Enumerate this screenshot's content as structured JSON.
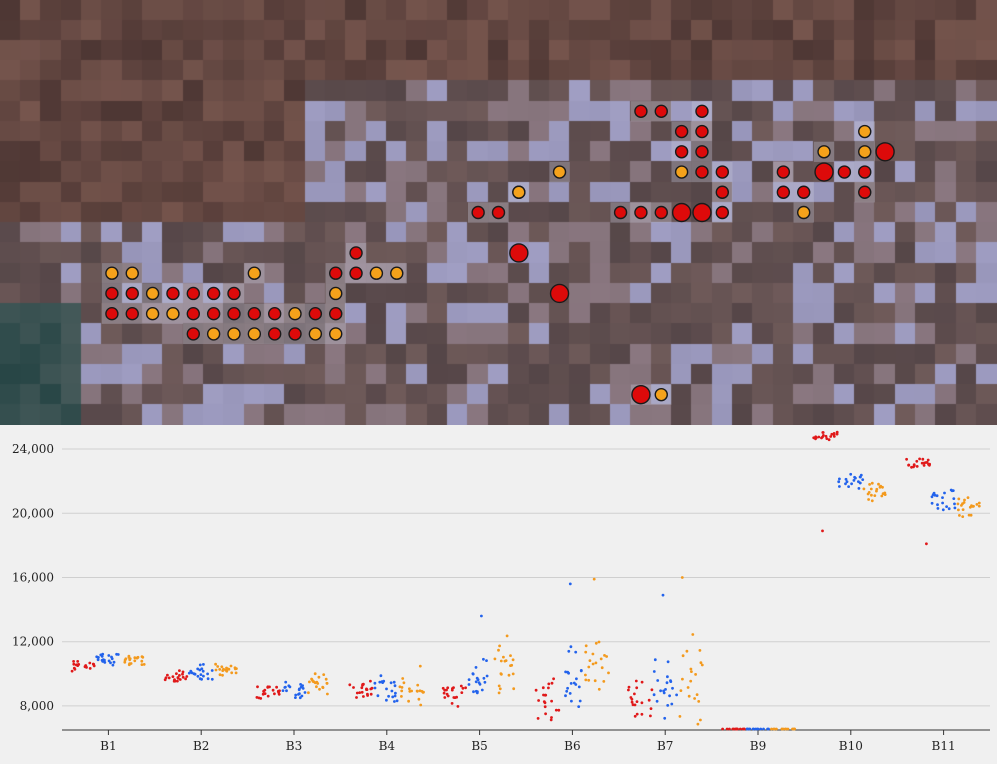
{
  "image_panel": {
    "marker_colors": {
      "red": "#dd0a0a",
      "orange": "#f5a21b",
      "outline": "#1a1a1a",
      "pixel_highlight": "#c9c9d9"
    },
    "pixel_grid": {
      "columns": 49,
      "rows": 21
    },
    "red_markers": [
      [
        31,
        5
      ],
      [
        32,
        5
      ],
      [
        34,
        5
      ],
      [
        33,
        6
      ],
      [
        34,
        6
      ],
      [
        33,
        7
      ],
      [
        34,
        7
      ],
      [
        34,
        8
      ],
      [
        35,
        8
      ],
      [
        38,
        8
      ],
      [
        41,
        8
      ],
      [
        42,
        8
      ],
      [
        25,
        9
      ],
      [
        35,
        9
      ],
      [
        38,
        9
      ],
      [
        39,
        9
      ],
      [
        42,
        9
      ],
      [
        23,
        10
      ],
      [
        24,
        10
      ],
      [
        30,
        10
      ],
      [
        31,
        10
      ],
      [
        32,
        10
      ],
      [
        35,
        10
      ],
      [
        17,
        12
      ],
      [
        16,
        13
      ],
      [
        17,
        13
      ],
      [
        5,
        14
      ],
      [
        6,
        14
      ],
      [
        8,
        14
      ],
      [
        9,
        14
      ],
      [
        10,
        14
      ],
      [
        11,
        14
      ],
      [
        5,
        15
      ],
      [
        6,
        15
      ],
      [
        9,
        15
      ],
      [
        10,
        15
      ],
      [
        11,
        15
      ],
      [
        12,
        15
      ],
      [
        13,
        15
      ],
      [
        15,
        15
      ],
      [
        16,
        15
      ],
      [
        9,
        16
      ],
      [
        13,
        16
      ],
      [
        14,
        16
      ],
      [
        31,
        19
      ]
    ],
    "orange_markers": [
      [
        42,
        6
      ],
      [
        40,
        7
      ],
      [
        42,
        7
      ],
      [
        33,
        8
      ],
      [
        27,
        8
      ],
      [
        25,
        9
      ],
      [
        39,
        10
      ],
      [
        5,
        13
      ],
      [
        6,
        13
      ],
      [
        12,
        13
      ],
      [
        18,
        13
      ],
      [
        19,
        13
      ],
      [
        7,
        14
      ],
      [
        16,
        14
      ],
      [
        7,
        15
      ],
      [
        8,
        15
      ],
      [
        14,
        15
      ],
      [
        10,
        16
      ],
      [
        11,
        16
      ],
      [
        12,
        16
      ],
      [
        15,
        16
      ],
      [
        16,
        16
      ],
      [
        32,
        19
      ]
    ],
    "big_red_markers": [
      [
        43,
        7
      ],
      [
        40,
        8
      ],
      [
        33,
        10
      ],
      [
        34,
        10
      ],
      [
        25,
        12
      ],
      [
        27,
        14
      ],
      [
        31,
        19
      ]
    ]
  },
  "chart_data": {
    "type": "scatter",
    "categories": [
      "B1",
      "B2",
      "B3",
      "B4",
      "B5",
      "B6",
      "B7",
      "B9",
      "B10",
      "B11"
    ],
    "ylim": [
      6500,
      25000
    ],
    "yticks": [
      8000,
      12000,
      16000,
      20000,
      24000
    ],
    "ytick_labels": [
      "8,000",
      "12,000",
      "16,000",
      "20,000",
      "24,000"
    ],
    "grid": true,
    "series": [
      {
        "color": "#e0191a",
        "offset": -0.27,
        "groups": [
          {
            "center": 10500,
            "spread": 350
          },
          {
            "center": 9850,
            "spread": 400
          },
          {
            "center": 8850,
            "spread": 600
          },
          {
            "center": 9000,
            "spread": 800
          },
          {
            "center": 8900,
            "spread": 1000
          },
          {
            "center": 8300,
            "spread": 1500
          },
          {
            "center": 8400,
            "spread": 1800
          },
          {
            "center": 6500,
            "spread": 0
          },
          {
            "center": 24850,
            "spread": 300,
            "outliers": [
              18900
            ]
          },
          {
            "center": 23100,
            "spread": 400,
            "outliers": [
              18100
            ]
          }
        ]
      },
      {
        "color": "#2363ec",
        "offset": 0,
        "groups": [
          {
            "center": 10800,
            "spread": 500
          },
          {
            "center": 10100,
            "spread": 700
          },
          {
            "center": 9100,
            "spread": 900
          },
          {
            "center": 9000,
            "spread": 1200
          },
          {
            "center": 9600,
            "spread": 1500,
            "outliers": [
              13600
            ]
          },
          {
            "center": 9800,
            "spread": 2500,
            "outliers": [
              15600
            ]
          },
          {
            "center": 9300,
            "spread": 2800,
            "outliers": [
              14900
            ]
          },
          {
            "center": 6500,
            "spread": 0
          },
          {
            "center": 21900,
            "spread": 700
          },
          {
            "center": 20800,
            "spread": 700
          }
        ]
      },
      {
        "color": "#f39a1e",
        "offset": 0.27,
        "groups": [
          {
            "center": 10800,
            "spread": 400
          },
          {
            "center": 10200,
            "spread": 450
          },
          {
            "center": 9400,
            "spread": 900
          },
          {
            "center": 9300,
            "spread": 1300
          },
          {
            "center": 10500,
            "spread": 2000
          },
          {
            "center": 10200,
            "spread": 2800,
            "outliers": [
              15900
            ]
          },
          {
            "center": 9600,
            "spread": 3200,
            "outliers": [
              16000
            ]
          },
          {
            "center": 6500,
            "spread": 0
          },
          {
            "center": 21400,
            "spread": 800
          },
          {
            "center": 20400,
            "spread": 700
          }
        ]
      }
    ]
  }
}
